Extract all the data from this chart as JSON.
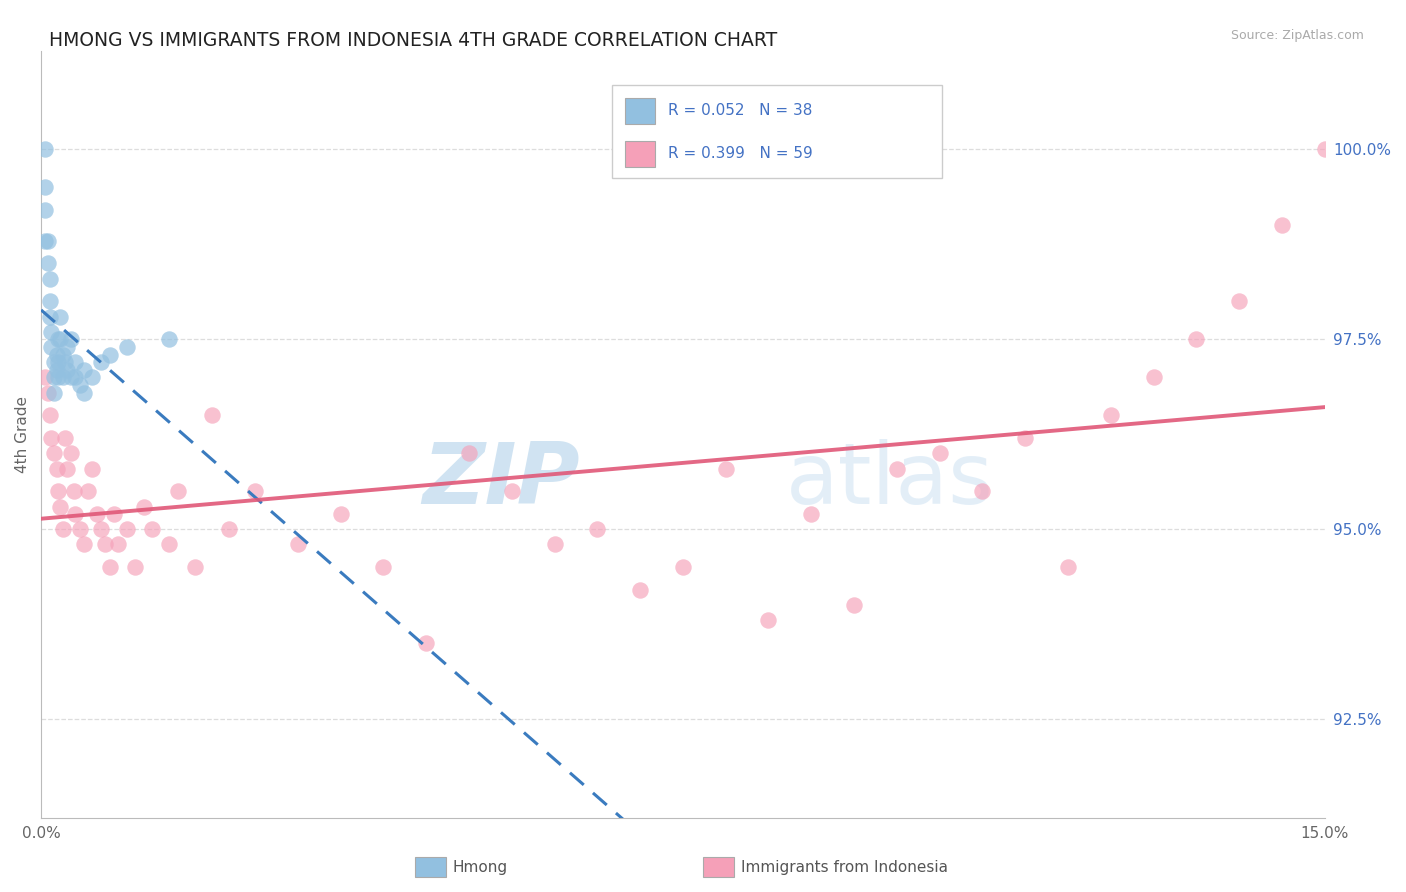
{
  "title": "HMONG VS IMMIGRANTS FROM INDONESIA 4TH GRADE CORRELATION CHART",
  "source_text": "Source: ZipAtlas.com",
  "ylabel": "4th Grade",
  "x_min": 0.0,
  "x_max": 15.0,
  "y_min": 91.2,
  "y_max": 101.3,
  "x_tick_labels": [
    "0.0%",
    "15.0%"
  ],
  "y_tick_labels": [
    "92.5%",
    "95.0%",
    "97.5%",
    "100.0%"
  ],
  "y_tick_values": [
    92.5,
    95.0,
    97.5,
    100.0
  ],
  "legend_r1": "R = 0.052",
  "legend_n1": "N = 38",
  "legend_r2": "R = 0.399",
  "legend_n2": "N = 59",
  "legend_label1": "Hmong",
  "legend_label2": "Immigrants from Indonesia",
  "color_blue": "#92c0e0",
  "color_pink": "#f5a0b8",
  "color_blue_line": "#3a7bbf",
  "color_pink_line": "#e05878",
  "watermark_zip": "ZIP",
  "watermark_atlas": "atlas",
  "hmong_x": [
    0.05,
    0.05,
    0.05,
    0.05,
    0.08,
    0.08,
    0.1,
    0.1,
    0.1,
    0.12,
    0.12,
    0.15,
    0.15,
    0.15,
    0.18,
    0.18,
    0.2,
    0.2,
    0.2,
    0.22,
    0.22,
    0.25,
    0.25,
    0.28,
    0.3,
    0.3,
    0.35,
    0.35,
    0.4,
    0.4,
    0.45,
    0.5,
    0.5,
    0.6,
    0.7,
    0.8,
    1.0,
    1.5
  ],
  "hmong_y": [
    100.0,
    99.5,
    99.2,
    98.8,
    98.8,
    98.5,
    98.3,
    98.0,
    97.8,
    97.6,
    97.4,
    97.2,
    97.0,
    96.8,
    97.3,
    97.1,
    97.5,
    97.2,
    97.0,
    97.8,
    97.5,
    97.3,
    97.0,
    97.2,
    97.4,
    97.1,
    97.5,
    97.0,
    97.2,
    97.0,
    96.9,
    97.1,
    96.8,
    97.0,
    97.2,
    97.3,
    97.4,
    97.5
  ],
  "indonesia_x": [
    0.05,
    0.08,
    0.1,
    0.12,
    0.15,
    0.18,
    0.2,
    0.22,
    0.25,
    0.28,
    0.3,
    0.35,
    0.38,
    0.4,
    0.45,
    0.5,
    0.55,
    0.6,
    0.65,
    0.7,
    0.75,
    0.8,
    0.85,
    0.9,
    1.0,
    1.1,
    1.2,
    1.3,
    1.5,
    1.6,
    1.8,
    2.0,
    2.2,
    2.5,
    3.0,
    3.5,
    4.0,
    4.5,
    5.0,
    5.5,
    6.0,
    6.5,
    7.0,
    7.5,
    8.0,
    8.5,
    9.0,
    9.5,
    10.0,
    10.5,
    11.0,
    11.5,
    12.0,
    12.5,
    13.0,
    13.5,
    14.0,
    14.5,
    15.0
  ],
  "indonesia_y": [
    97.0,
    96.8,
    96.5,
    96.2,
    96.0,
    95.8,
    95.5,
    95.3,
    95.0,
    96.2,
    95.8,
    96.0,
    95.5,
    95.2,
    95.0,
    94.8,
    95.5,
    95.8,
    95.2,
    95.0,
    94.8,
    94.5,
    95.2,
    94.8,
    95.0,
    94.5,
    95.3,
    95.0,
    94.8,
    95.5,
    94.5,
    96.5,
    95.0,
    95.5,
    94.8,
    95.2,
    94.5,
    93.5,
    96.0,
    95.5,
    94.8,
    95.0,
    94.2,
    94.5,
    95.8,
    93.8,
    95.2,
    94.0,
    95.8,
    96.0,
    95.5,
    96.2,
    94.5,
    96.5,
    97.0,
    97.5,
    98.0,
    99.0,
    100.0
  ]
}
